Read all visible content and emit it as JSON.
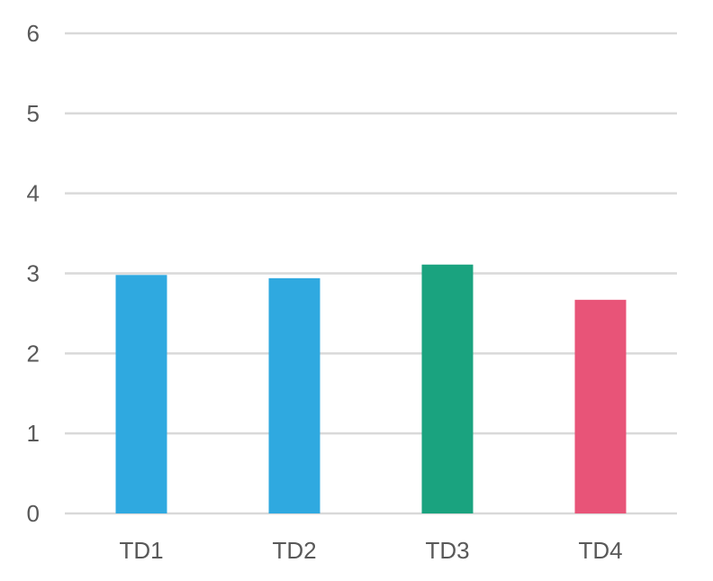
{
  "chart_data": {
    "type": "bar",
    "title": "",
    "xlabel": "",
    "ylabel": "",
    "categories": [
      "TD1",
      "TD2",
      "TD3",
      "TD4"
    ],
    "values": [
      2.98,
      2.94,
      3.11,
      2.67
    ],
    "colors": [
      "#2fa9e0",
      "#2fa9e0",
      "#1aa37f",
      "#e85478"
    ],
    "ylim": [
      0,
      6
    ],
    "yticks": [
      0,
      1,
      2,
      3,
      4,
      5,
      6
    ],
    "grid": true,
    "legend": "none"
  }
}
